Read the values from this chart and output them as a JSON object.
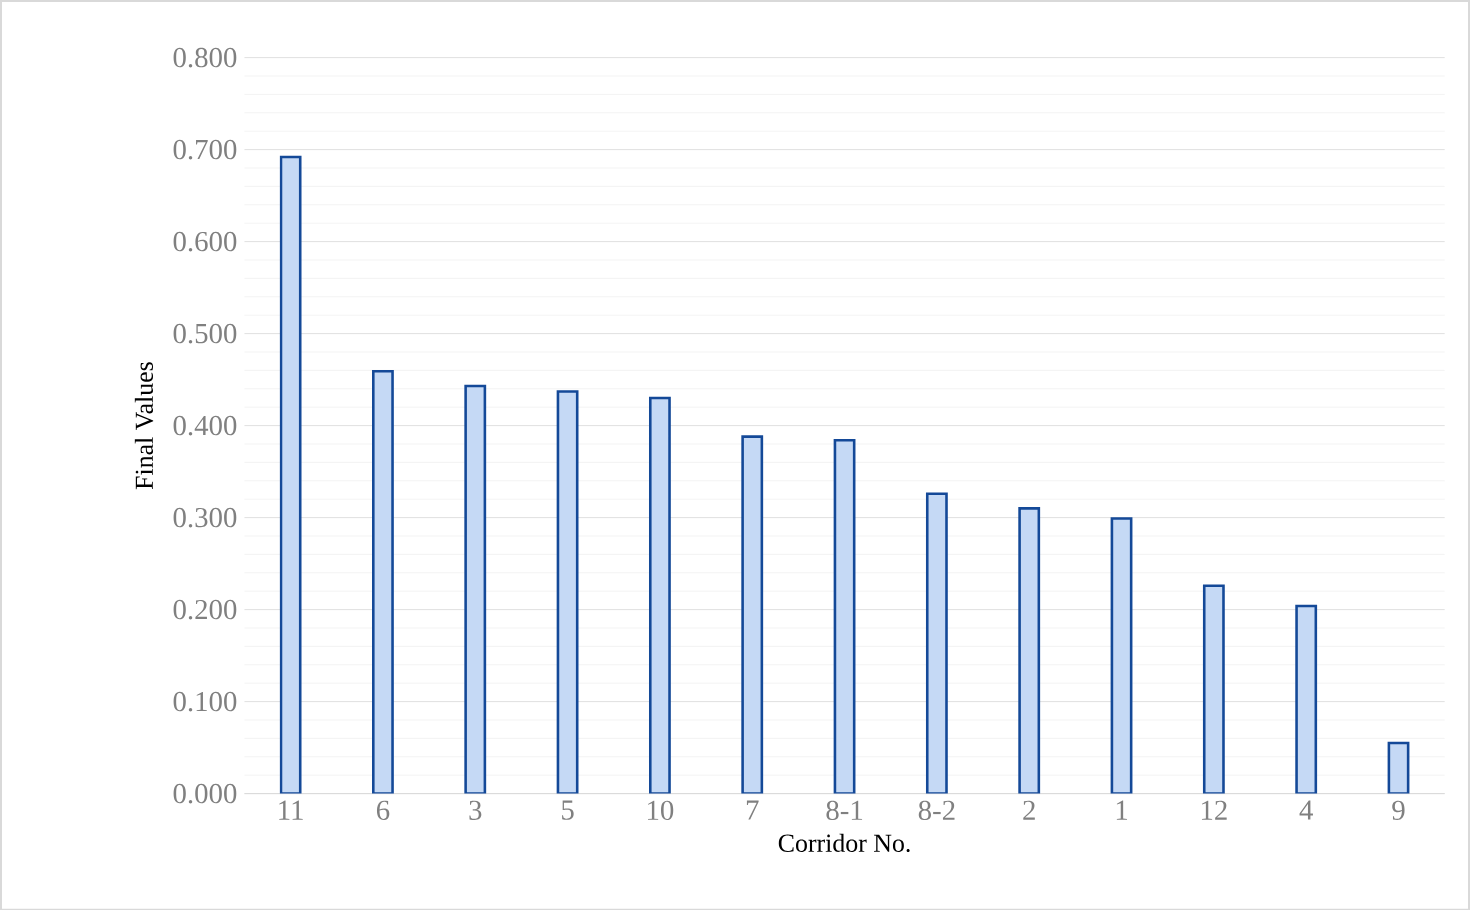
{
  "chart_data": {
    "type": "bar",
    "xlabel": "Corridor No.",
    "ylabel": "Final Values",
    "categories": [
      "11",
      "6",
      "3",
      "5",
      "10",
      "7",
      "8-1",
      "8-2",
      "2",
      "1",
      "12",
      "4",
      "9"
    ],
    "values": [
      0.692,
      0.459,
      0.443,
      0.437,
      0.43,
      0.388,
      0.384,
      0.326,
      0.31,
      0.299,
      0.226,
      0.204,
      0.055
    ],
    "color": "#c5d9f5",
    "ylim": [
      0,
      0.8
    ],
    "yticks": [
      {
        "value": 0,
        "label": "0.000"
      },
      {
        "value": 0.1,
        "label": "0.100"
      },
      {
        "value": 0.2,
        "label": "0.200"
      },
      {
        "value": 0.3,
        "label": "0.300"
      },
      {
        "value": 0.4,
        "label": "0.400"
      },
      {
        "value": 0.5,
        "label": "0.500"
      },
      {
        "value": 0.6,
        "label": "0.600"
      },
      {
        "value": 0.7,
        "label": "0.700"
      },
      {
        "value": 0.8,
        "label": "0.800"
      }
    ],
    "grid": "y"
  }
}
